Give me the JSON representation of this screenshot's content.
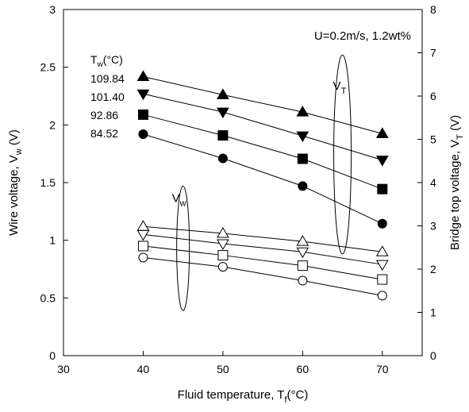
{
  "chart_data": {
    "type": "scatter",
    "connected": true,
    "annotation": "U=0.2m/s, 1.2wt%",
    "legend_title": {
      "base": "T",
      "sub": "w",
      "unit": "(°C)"
    },
    "legend_values": [
      "109.84",
      "101.40",
      "92.86",
      "84.52"
    ],
    "group_labels": {
      "vt": {
        "base": "V",
        "sub": "T"
      },
      "vw": {
        "base": "V",
        "sub": "w"
      }
    },
    "xaxis": {
      "label": {
        "base": "Fluid temperature, T",
        "sub": "f",
        "unit": "(°C)"
      },
      "range": [
        30,
        75
      ],
      "ticks": [
        "30",
        "40",
        "50",
        "60",
        "70"
      ]
    },
    "yaxis_left": {
      "label": {
        "base": "Wire voltage, V",
        "sub": "w",
        "unit": " (V)"
      },
      "range": [
        0,
        3
      ],
      "ticks": [
        "0",
        "0.5",
        "1",
        "1.5",
        "2",
        "2.5",
        "3"
      ]
    },
    "yaxis_right": {
      "label": {
        "base": "Bridge top voltage, V",
        "sub": "T",
        "unit": " (V)"
      },
      "range": [
        0,
        8
      ],
      "ticks": [
        "0",
        "1",
        "2",
        "3",
        "4",
        "5",
        "6",
        "7",
        "8"
      ]
    },
    "x": [
      40,
      50,
      60,
      70
    ],
    "series": [
      {
        "group": "VT",
        "axis": "right",
        "marker": "triangle-up",
        "filled": true,
        "tw": "109.84",
        "values": [
          6.45,
          6.03,
          5.63,
          5.13
        ]
      },
      {
        "group": "VT",
        "axis": "right",
        "marker": "triangle-down",
        "filled": true,
        "tw": "101.40",
        "values": [
          6.05,
          5.63,
          5.08,
          4.52
        ]
      },
      {
        "group": "VT",
        "axis": "right",
        "marker": "square",
        "filled": true,
        "tw": "92.86",
        "values": [
          5.57,
          5.09,
          4.55,
          3.85
        ]
      },
      {
        "group": "VT",
        "axis": "right",
        "marker": "circle",
        "filled": true,
        "tw": "84.52",
        "values": [
          5.12,
          4.56,
          3.92,
          3.05
        ]
      },
      {
        "group": "Vw",
        "axis": "left",
        "marker": "triangle-up",
        "filled": false,
        "tw": "109.84",
        "values": [
          1.12,
          1.06,
          0.99,
          0.9
        ]
      },
      {
        "group": "Vw",
        "axis": "left",
        "marker": "triangle-down",
        "filled": false,
        "tw": "101.40",
        "values": [
          1.05,
          0.97,
          0.9,
          0.79
        ]
      },
      {
        "group": "Vw",
        "axis": "left",
        "marker": "square",
        "filled": false,
        "tw": "92.86",
        "values": [
          0.95,
          0.87,
          0.78,
          0.66
        ]
      },
      {
        "group": "Vw",
        "axis": "left",
        "marker": "circle",
        "filled": false,
        "tw": "84.52",
        "values": [
          0.85,
          0.77,
          0.65,
          0.52
        ]
      }
    ]
  }
}
